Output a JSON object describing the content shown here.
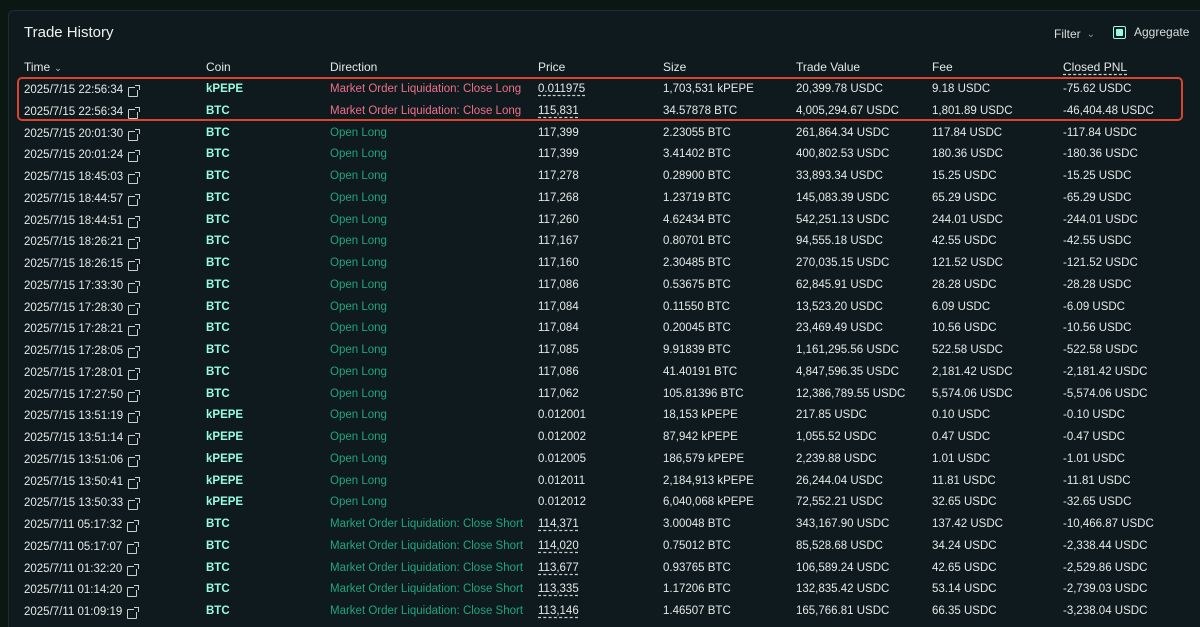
{
  "panel": {
    "title": "Trade History",
    "filter_label": "Filter",
    "aggregate_label": "Aggregate"
  },
  "columns": [
    "Time",
    "Coin",
    "Direction",
    "Price",
    "Size",
    "Trade Value",
    "Fee",
    "Closed PNL"
  ],
  "rows": [
    {
      "time": "2025/7/15 22:56:34",
      "coin": "kPEPE",
      "direction": "Market Order Liquidation: Close Long",
      "price": "0.011975",
      "size": "1,703,531 kPEPE",
      "value": "20,399.78 USDC",
      "fee": "9.18 USDC",
      "pnl": "-75.62 USDC",
      "dir_type": "red",
      "price_dashed": true
    },
    {
      "time": "2025/7/15 22:56:34",
      "coin": "BTC",
      "direction": "Market Order Liquidation: Close Long",
      "price": "115,831",
      "size": "34.57878 BTC",
      "value": "4,005,294.67 USDC",
      "fee": "1,801.89 USDC",
      "pnl": "-46,404.48 USDC",
      "dir_type": "red",
      "price_dashed": true
    },
    {
      "time": "2025/7/15 20:01:30",
      "coin": "BTC",
      "direction": "Open Long",
      "price": "117,399",
      "size": "2.23055 BTC",
      "value": "261,864.34 USDC",
      "fee": "117.84 USDC",
      "pnl": "-117.84 USDC",
      "dir_type": "green",
      "price_dashed": false
    },
    {
      "time": "2025/7/15 20:01:24",
      "coin": "BTC",
      "direction": "Open Long",
      "price": "117,399",
      "size": "3.41402 BTC",
      "value": "400,802.53 USDC",
      "fee": "180.36 USDC",
      "pnl": "-180.36 USDC",
      "dir_type": "green",
      "price_dashed": false
    },
    {
      "time": "2025/7/15 18:45:03",
      "coin": "BTC",
      "direction": "Open Long",
      "price": "117,278",
      "size": "0.28900 BTC",
      "value": "33,893.34 USDC",
      "fee": "15.25 USDC",
      "pnl": "-15.25 USDC",
      "dir_type": "green",
      "price_dashed": false
    },
    {
      "time": "2025/7/15 18:44:57",
      "coin": "BTC",
      "direction": "Open Long",
      "price": "117,268",
      "size": "1.23719 BTC",
      "value": "145,083.39 USDC",
      "fee": "65.29 USDC",
      "pnl": "-65.29 USDC",
      "dir_type": "green",
      "price_dashed": false
    },
    {
      "time": "2025/7/15 18:44:51",
      "coin": "BTC",
      "direction": "Open Long",
      "price": "117,260",
      "size": "4.62434 BTC",
      "value": "542,251.13 USDC",
      "fee": "244.01 USDC",
      "pnl": "-244.01 USDC",
      "dir_type": "green",
      "price_dashed": false
    },
    {
      "time": "2025/7/15 18:26:21",
      "coin": "BTC",
      "direction": "Open Long",
      "price": "117,167",
      "size": "0.80701 BTC",
      "value": "94,555.18 USDC",
      "fee": "42.55 USDC",
      "pnl": "-42.55 USDC",
      "dir_type": "green",
      "price_dashed": false
    },
    {
      "time": "2025/7/15 18:26:15",
      "coin": "BTC",
      "direction": "Open Long",
      "price": "117,160",
      "size": "2.30485 BTC",
      "value": "270,035.15 USDC",
      "fee": "121.52 USDC",
      "pnl": "-121.52 USDC",
      "dir_type": "green",
      "price_dashed": false
    },
    {
      "time": "2025/7/15 17:33:30",
      "coin": "BTC",
      "direction": "Open Long",
      "price": "117,086",
      "size": "0.53675 BTC",
      "value": "62,845.91 USDC",
      "fee": "28.28 USDC",
      "pnl": "-28.28 USDC",
      "dir_type": "green",
      "price_dashed": false
    },
    {
      "time": "2025/7/15 17:28:30",
      "coin": "BTC",
      "direction": "Open Long",
      "price": "117,084",
      "size": "0.11550 BTC",
      "value": "13,523.20 USDC",
      "fee": "6.09 USDC",
      "pnl": "-6.09 USDC",
      "dir_type": "green",
      "price_dashed": false
    },
    {
      "time": "2025/7/15 17:28:21",
      "coin": "BTC",
      "direction": "Open Long",
      "price": "117,084",
      "size": "0.20045 BTC",
      "value": "23,469.49 USDC",
      "fee": "10.56 USDC",
      "pnl": "-10.56 USDC",
      "dir_type": "green",
      "price_dashed": false
    },
    {
      "time": "2025/7/15 17:28:05",
      "coin": "BTC",
      "direction": "Open Long",
      "price": "117,085",
      "size": "9.91839 BTC",
      "value": "1,161,295.56 USDC",
      "fee": "522.58 USDC",
      "pnl": "-522.58 USDC",
      "dir_type": "green",
      "price_dashed": false
    },
    {
      "time": "2025/7/15 17:28:01",
      "coin": "BTC",
      "direction": "Open Long",
      "price": "117,086",
      "size": "41.40191 BTC",
      "value": "4,847,596.35 USDC",
      "fee": "2,181.42 USDC",
      "pnl": "-2,181.42 USDC",
      "dir_type": "green",
      "price_dashed": false
    },
    {
      "time": "2025/7/15 17:27:50",
      "coin": "BTC",
      "direction": "Open Long",
      "price": "117,062",
      "size": "105.81396 BTC",
      "value": "12,386,789.55 USDC",
      "fee": "5,574.06 USDC",
      "pnl": "-5,574.06 USDC",
      "dir_type": "green",
      "price_dashed": false
    },
    {
      "time": "2025/7/15 13:51:19",
      "coin": "kPEPE",
      "direction": "Open Long",
      "price": "0.012001",
      "size": "18,153 kPEPE",
      "value": "217.85 USDC",
      "fee": "0.10 USDC",
      "pnl": "-0.10 USDC",
      "dir_type": "green",
      "price_dashed": false
    },
    {
      "time": "2025/7/15 13:51:14",
      "coin": "kPEPE",
      "direction": "Open Long",
      "price": "0.012002",
      "size": "87,942 kPEPE",
      "value": "1,055.52 USDC",
      "fee": "0.47 USDC",
      "pnl": "-0.47 USDC",
      "dir_type": "green",
      "price_dashed": false
    },
    {
      "time": "2025/7/15 13:51:06",
      "coin": "kPEPE",
      "direction": "Open Long",
      "price": "0.012005",
      "size": "186,579 kPEPE",
      "value": "2,239.88 USDC",
      "fee": "1.01 USDC",
      "pnl": "-1.01 USDC",
      "dir_type": "green",
      "price_dashed": false
    },
    {
      "time": "2025/7/15 13:50:41",
      "coin": "kPEPE",
      "direction": "Open Long",
      "price": "0.012011",
      "size": "2,184,913 kPEPE",
      "value": "26,244.04 USDC",
      "fee": "11.81 USDC",
      "pnl": "-11.81 USDC",
      "dir_type": "green",
      "price_dashed": false
    },
    {
      "time": "2025/7/15 13:50:33",
      "coin": "kPEPE",
      "direction": "Open Long",
      "price": "0.012012",
      "size": "6,040,068 kPEPE",
      "value": "72,552.21 USDC",
      "fee": "32.65 USDC",
      "pnl": "-32.65 USDC",
      "dir_type": "green",
      "price_dashed": false
    },
    {
      "time": "2025/7/11 05:17:32",
      "coin": "BTC",
      "direction": "Market Order Liquidation: Close Short",
      "price": "114,371",
      "size": "3.00048 BTC",
      "value": "343,167.90 USDC",
      "fee": "137.42 USDC",
      "pnl": "-10,466.87 USDC",
      "dir_type": "green",
      "price_dashed": true
    },
    {
      "time": "2025/7/11 05:17:07",
      "coin": "BTC",
      "direction": "Market Order Liquidation: Close Short",
      "price": "114,020",
      "size": "0.75012 BTC",
      "value": "85,528.68 USDC",
      "fee": "34.24 USDC",
      "pnl": "-2,338.44 USDC",
      "dir_type": "green",
      "price_dashed": true
    },
    {
      "time": "2025/7/11 01:32:20",
      "coin": "BTC",
      "direction": "Market Order Liquidation: Close Short",
      "price": "113,677",
      "size": "0.93765 BTC",
      "value": "106,589.24 USDC",
      "fee": "42.65 USDC",
      "pnl": "-2,529.86 USDC",
      "dir_type": "green",
      "price_dashed": true
    },
    {
      "time": "2025/7/11 01:14:20",
      "coin": "BTC",
      "direction": "Market Order Liquidation: Close Short",
      "price": "113,335",
      "size": "1.17206 BTC",
      "value": "132,835.42 USDC",
      "fee": "53.14 USDC",
      "pnl": "-2,739.03 USDC",
      "dir_type": "green",
      "price_dashed": true
    },
    {
      "time": "2025/7/11 01:09:19",
      "coin": "BTC",
      "direction": "Market Order Liquidation: Close Short",
      "price": "113,146",
      "size": "1.46507 BTC",
      "value": "165,766.81 USDC",
      "fee": "66.35 USDC",
      "pnl": "-3,238.04 USDC",
      "dir_type": "green",
      "price_dashed": true
    }
  ]
}
